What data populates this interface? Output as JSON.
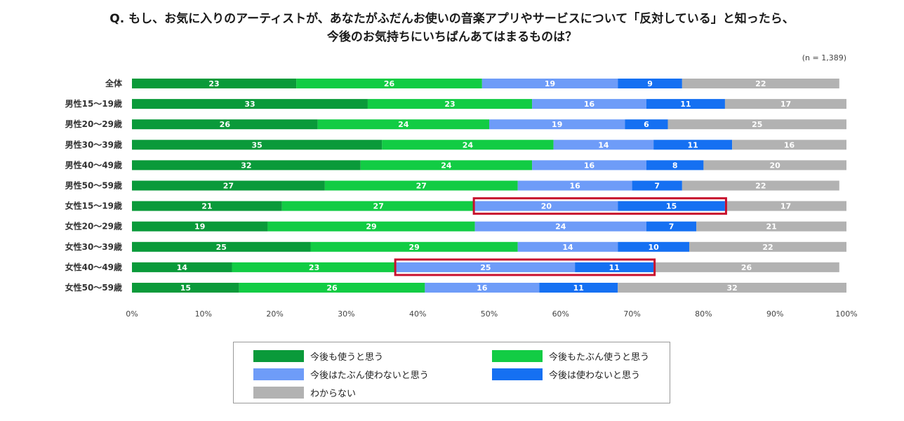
{
  "title": {
    "line1": "Q. もし、お気に入りのアーティストが、あなたがふだんお使いの音楽アプリやサービスについて「反対している」と知ったら、",
    "line2": "今後のお気持ちにいちばんあてはまるものは？"
  },
  "sample_note": "(n = 1,389)",
  "colors": {
    "use_again": "#0a9a3a",
    "maybe_use": "#12cc44",
    "maybe_not_use": "#6e9cf8",
    "not_use": "#1570f2",
    "dont_know": "#b2b2b2",
    "highlight": "#c8102e"
  },
  "chart_data": {
    "type": "bar",
    "orientation": "horizontal",
    "stacked": true,
    "categories": [
      "全体",
      "男性15〜19歳",
      "男性20〜29歳",
      "男性30〜39歳",
      "男性40〜49歳",
      "男性50〜59歳",
      "女性15〜19歳",
      "女性20〜29歳",
      "女性30〜39歳",
      "女性40〜49歳",
      "女性50〜59歳"
    ],
    "series": [
      {
        "name": "今後も使うと思う",
        "values": [
          23,
          33,
          26,
          35,
          32,
          27,
          21,
          19,
          25,
          14,
          15
        ]
      },
      {
        "name": "今後もたぶん使うと思う",
        "values": [
          26,
          23,
          24,
          24,
          24,
          27,
          27,
          29,
          29,
          23,
          26
        ]
      },
      {
        "name": "今後はたぶん使わないと思う",
        "values": [
          19,
          16,
          19,
          14,
          16,
          16,
          20,
          24,
          14,
          25,
          16
        ]
      },
      {
        "name": "今後は使わないと思う",
        "values": [
          9,
          11,
          6,
          11,
          8,
          7,
          15,
          7,
          10,
          11,
          11
        ]
      },
      {
        "name": "わからない",
        "values": [
          22,
          17,
          25,
          16,
          20,
          22,
          17,
          21,
          22,
          26,
          32
        ]
      }
    ],
    "xlim": [
      0,
      100
    ],
    "x_ticks": [
      "0%",
      "10%",
      "20%",
      "30%",
      "40%",
      "50%",
      "60%",
      "70%",
      "80%",
      "90%",
      "100%"
    ],
    "highlighted_rows": [
      6,
      9
    ],
    "highlighted_series": [
      2,
      3
    ],
    "legend_position": "bottom",
    "grid": false
  }
}
